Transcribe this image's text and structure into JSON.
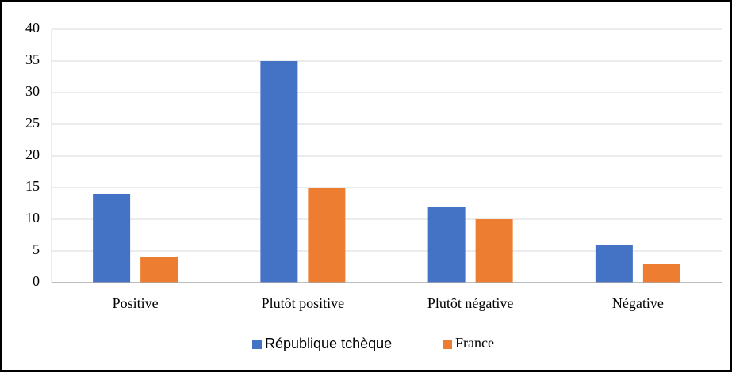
{
  "chart_data": {
    "type": "bar",
    "categories": [
      "Positive",
      "Plutôt positive",
      "Plutôt négative",
      "Négative"
    ],
    "series": [
      {
        "name": "République tchèque",
        "color": "#4472c4",
        "values": [
          14,
          35,
          12,
          6
        ]
      },
      {
        "name": "France",
        "color": "#ed7d31",
        "values": [
          4,
          15,
          10,
          3
        ]
      }
    ],
    "ylim": [
      0,
      40
    ],
    "yticks": [
      0,
      5,
      10,
      15,
      20,
      25,
      30,
      35,
      40
    ],
    "grid": true,
    "legend": "bottom"
  }
}
